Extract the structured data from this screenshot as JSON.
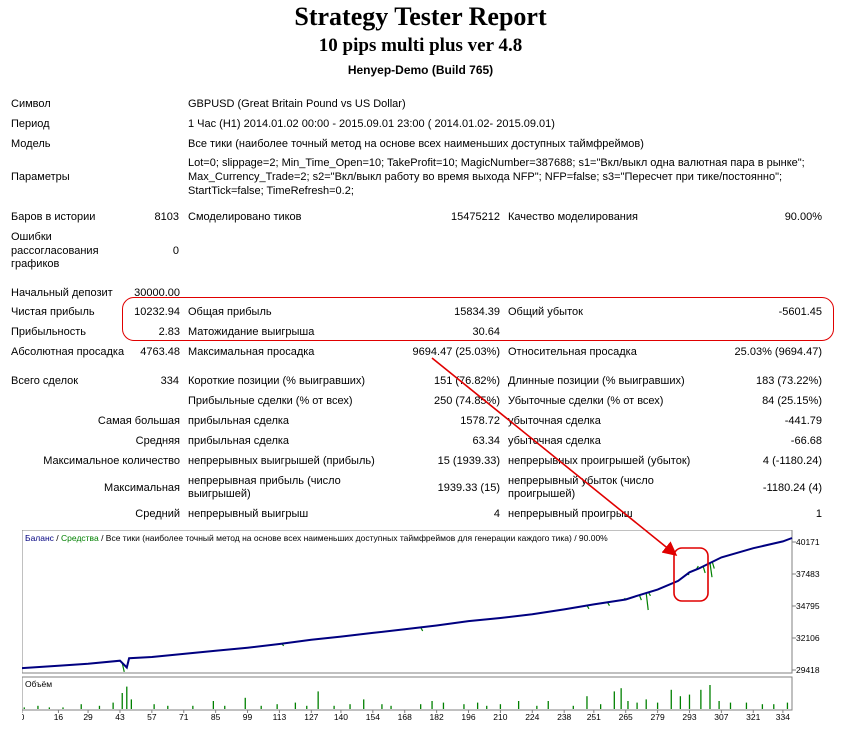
{
  "header": {
    "title": "Strategy Tester Report",
    "subtitle": "10 pips multi plus ver 4.8",
    "account": "Henyep-Demo (Build 765)"
  },
  "info": {
    "symbol_label": "Символ",
    "symbol_value": "GBPUSD (Great Britain Pound vs US Dollar)",
    "period_label": "Период",
    "period_value": "1 Час (H1) 2014.01.02 00:00 - 2015.09.01 23:00 ( 2014.01.02- 2015.09.01)",
    "model_label": "Модель",
    "model_value": "Все тики (наиболее точный метод на основе всех наименьших доступных таймфреймов)",
    "params_label": "Параметры",
    "params_line1": "Lot=0; slippage=2; Min_Time_Open=10; TakeProfit=10; MagicNumber=387688; s1=\"Вкл/выкл одна валютная пара в рынке\";",
    "params_line2": "Max_Currency_Trade=2; s2=\"Вкл/выкл работу во время выхода NFP\"; NFP=false; s3=\"Пересчет при тике/постоянно\";",
    "params_line3": "StartTick=false; TimeRefresh=0.2;"
  },
  "stats": {
    "bars_label": "Баров в истории",
    "bars_value": "8103",
    "ticks_label": "Смоделировано тиков",
    "ticks_value": "15475212",
    "quality_label": "Качество моделирования",
    "quality_value": "90.00%",
    "mismatch_l1": "Ошибки",
    "mismatch_l2": "рассогласования",
    "mismatch_l3": "графиков",
    "mismatch_value": "0",
    "deposit_label": "Начальный депозит",
    "deposit_value": "30000.00",
    "net_label": "Чистая прибыль",
    "net_value": "10232.94",
    "gross_profit_label": "Общая прибыль",
    "gross_profit_value": "15834.39",
    "gross_loss_label": "Общий убыток",
    "gross_loss_value": "-5601.45",
    "pf_label": "Прибыльность",
    "pf_value": "2.83",
    "payoff_label": "Матожидание выигрыша",
    "payoff_value": "30.64",
    "abs_dd_label": "Абсолютная просадка",
    "abs_dd_value": "4763.48",
    "max_dd_label": "Максимальная просадка",
    "max_dd_value": "9694.47 (25.03%)",
    "rel_dd_label": "Относительная просадка",
    "rel_dd_value": "25.03% (9694.47)",
    "total_trades_label": "Всего сделок",
    "total_trades_value": "334",
    "short_label": "Короткие позиции (% выигравших)",
    "short_value": "151 (76.82%)",
    "long_label": "Длинные позиции (% выигравших)",
    "long_value": "183 (73.22%)",
    "profit_trades_label": "Прибыльные сделки (% от всех)",
    "profit_trades_value": "250 (74.85%)",
    "loss_trades_label": "Убыточные сделки (% от всех)",
    "loss_trades_value": "84 (25.15%)",
    "largest_label": "Самая большая",
    "largest_profit_label": "прибыльная сделка",
    "largest_profit_value": "1578.72",
    "largest_loss_label": "убыточная сделка",
    "largest_loss_value": "-441.79",
    "average_label": "Средняя",
    "average_profit_label": "прибыльная сделка",
    "average_profit_value": "63.34",
    "average_loss_label": "убыточная сделка",
    "average_loss_value": "-66.68",
    "maxcount_label": "Максимальное количество",
    "maxcount_wins_label": "непрерывных выигрышей (прибыль)",
    "maxcount_wins_value": "15 (1939.33)",
    "maxcount_losses_label": "непрерывных проигрышей (убыток)",
    "maxcount_losses_value": "4 (-1180.24)",
    "maximal_label": "Максимальная",
    "maximal_profit_l1": "непрерывная прибыль (число",
    "maximal_profit_l2": "выигрышей)",
    "maximal_profit_value": "1939.33 (15)",
    "maximal_loss_l1": "непрерывный убыток (число",
    "maximal_loss_l2": "проигрышей)",
    "maximal_loss_value": "-1180.24 (4)",
    "avg_consec_label": "Средний",
    "avg_wins_label": "непрерывный выигрыш",
    "avg_wins_value": "4",
    "avg_losses_label": "непрерывный проигрыш",
    "avg_losses_value": "1"
  },
  "chart_data": {
    "type": "line",
    "legend_balance": "Баланс",
    "legend_sep1": " / ",
    "legend_equity": "Средства",
    "legend_rest": " / Все тики (наиболее точный метод на основе всех наименьших доступных таймфреймов для генерации каждого тика) / 90.00%",
    "volume_label": "Объём",
    "balance_color": "#000080",
    "equity_color": "#008000",
    "yticks": [
      "40171",
      "37483",
      "34795",
      "32106",
      "29418"
    ],
    "ylim": [
      29418,
      40171
    ],
    "xticks": [
      "0",
      "16",
      "29",
      "43",
      "57",
      "71",
      "85",
      "99",
      "113",
      "127",
      "140",
      "154",
      "168",
      "182",
      "196",
      "210",
      "224",
      "238",
      "251",
      "265",
      "279",
      "293",
      "307",
      "321",
      "334"
    ],
    "xlim": [
      0,
      338
    ],
    "balance": [
      [
        0,
        29650
      ],
      [
        16,
        29850
      ],
      [
        29,
        30000
      ],
      [
        43,
        30250
      ],
      [
        46,
        29700
      ],
      [
        47,
        30450
      ],
      [
        57,
        30550
      ],
      [
        71,
        30800
      ],
      [
        85,
        31050
      ],
      [
        99,
        31300
      ],
      [
        113,
        31600
      ],
      [
        127,
        31950
      ],
      [
        140,
        32200
      ],
      [
        154,
        32500
      ],
      [
        168,
        32800
      ],
      [
        182,
        33100
      ],
      [
        196,
        33450
      ],
      [
        210,
        33700
      ],
      [
        224,
        34000
      ],
      [
        238,
        34400
      ],
      [
        251,
        34800
      ],
      [
        265,
        35200
      ],
      [
        270,
        35500
      ],
      [
        279,
        36000
      ],
      [
        288,
        36700
      ],
      [
        293,
        37400
      ],
      [
        297,
        37700
      ],
      [
        307,
        38600
      ],
      [
        321,
        39350
      ],
      [
        334,
        39900
      ],
      [
        338,
        40171
      ]
    ],
    "equity_dips": [
      [
        44,
        29350
      ],
      [
        114,
        31450
      ],
      [
        175,
        32650
      ],
      [
        248,
        34450
      ],
      [
        257,
        34700
      ],
      [
        264,
        35300
      ],
      [
        271,
        35150
      ],
      [
        274,
        34350
      ],
      [
        275,
        35500
      ],
      [
        292,
        37200
      ],
      [
        296,
        37900
      ],
      [
        299,
        37350
      ],
      [
        302,
        37000
      ],
      [
        303,
        37700
      ]
    ],
    "volume": [
      [
        1,
        1
      ],
      [
        7,
        2
      ],
      [
        12,
        1
      ],
      [
        18,
        1
      ],
      [
        26,
        3
      ],
      [
        34,
        2
      ],
      [
        40,
        4
      ],
      [
        44,
        10
      ],
      [
        46,
        14
      ],
      [
        48,
        6
      ],
      [
        58,
        3
      ],
      [
        64,
        2
      ],
      [
        75,
        2
      ],
      [
        84,
        5
      ],
      [
        89,
        2
      ],
      [
        98,
        7
      ],
      [
        105,
        2
      ],
      [
        112,
        3
      ],
      [
        120,
        4
      ],
      [
        125,
        2
      ],
      [
        130,
        11
      ],
      [
        137,
        2
      ],
      [
        144,
        3
      ],
      [
        150,
        6
      ],
      [
        158,
        3
      ],
      [
        162,
        2
      ],
      [
        175,
        3
      ],
      [
        180,
        5
      ],
      [
        185,
        4
      ],
      [
        194,
        3
      ],
      [
        200,
        4
      ],
      [
        204,
        2
      ],
      [
        210,
        3
      ],
      [
        218,
        5
      ],
      [
        226,
        2
      ],
      [
        231,
        5
      ],
      [
        242,
        2
      ],
      [
        248,
        8
      ],
      [
        254,
        3
      ],
      [
        260,
        11
      ],
      [
        263,
        13
      ],
      [
        266,
        5
      ],
      [
        270,
        4
      ],
      [
        274,
        6
      ],
      [
        279,
        4
      ],
      [
        285,
        12
      ],
      [
        289,
        8
      ],
      [
        293,
        9
      ],
      [
        298,
        12
      ],
      [
        302,
        15
      ],
      [
        306,
        5
      ],
      [
        311,
        4
      ],
      [
        318,
        4
      ],
      [
        325,
        3
      ],
      [
        330,
        3
      ],
      [
        336,
        4
      ]
    ]
  }
}
